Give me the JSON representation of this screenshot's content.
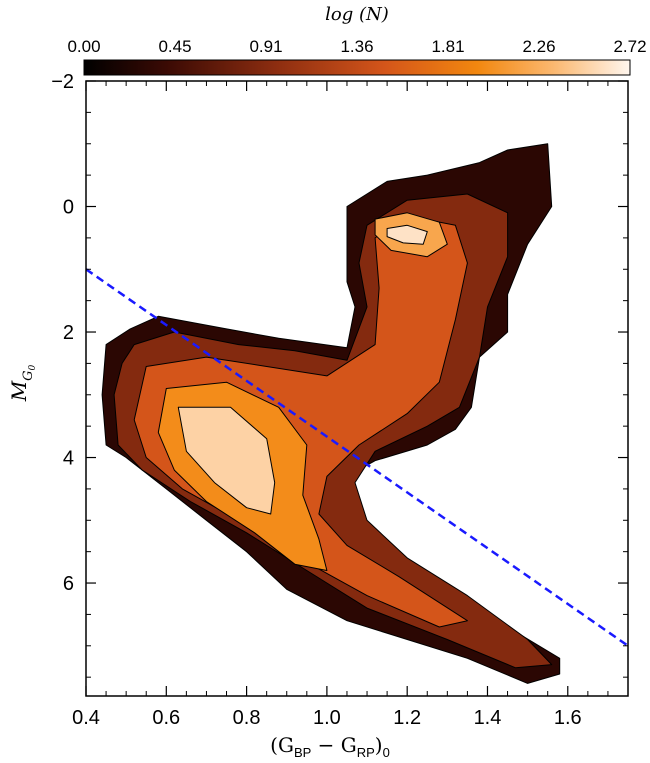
{
  "chart_data": {
    "type": "heatmap",
    "subtype": "density contour (Hess diagram)",
    "colorbar": {
      "title": "log (N)",
      "ticks": [
        "0.00",
        "0.45",
        "0.91",
        "1.36",
        "1.81",
        "2.26",
        "2.72"
      ],
      "range": [
        0.0,
        2.72
      ],
      "colormap": "black-red-orange-white (hot)"
    },
    "xlabel": {
      "main": "(G",
      "sub1": "BP",
      "minus": " − G",
      "sub2": "RP",
      "close": ")",
      "sub3": "0"
    },
    "ylabel": {
      "main": "M",
      "sub": "G",
      "subsub": "0"
    },
    "xlim": [
      0.4,
      1.75
    ],
    "ylim": [
      7.8,
      -2.0
    ],
    "x_ticks": [
      "0.4",
      "0.6",
      "0.8",
      "1.0",
      "1.2",
      "1.4",
      "1.6"
    ],
    "x_tick_values": [
      0.4,
      0.6,
      0.8,
      1.0,
      1.2,
      1.4,
      1.6
    ],
    "y_ticks": [
      "−2",
      "0",
      "2",
      "4",
      "6"
    ],
    "y_tick_values": [
      -2,
      0,
      2,
      4,
      6
    ],
    "grid": false,
    "density_levels": [
      {
        "level": 0.3,
        "polygon": [
          [
            0.51,
            1.95
          ],
          [
            0.58,
            1.75
          ],
          [
            0.75,
            1.95
          ],
          [
            0.88,
            2.1
          ],
          [
            1.05,
            2.25
          ],
          [
            1.07,
            1.6
          ],
          [
            1.05,
            1.2
          ],
          [
            1.05,
            0.5
          ],
          [
            1.05,
            0.0
          ],
          [
            1.15,
            -0.4
          ],
          [
            1.25,
            -0.5
          ],
          [
            1.38,
            -0.7
          ],
          [
            1.45,
            -0.9
          ],
          [
            1.55,
            -1.0
          ],
          [
            1.56,
            0.0
          ],
          [
            1.5,
            0.6
          ],
          [
            1.45,
            1.4
          ],
          [
            1.45,
            2.0
          ],
          [
            1.38,
            2.4
          ],
          [
            1.36,
            3.2
          ],
          [
            1.32,
            3.55
          ],
          [
            1.25,
            3.8
          ],
          [
            1.12,
            4.05
          ],
          [
            1.05,
            4.3
          ],
          [
            1.04,
            4.8
          ],
          [
            1.1,
            5.3
          ],
          [
            1.2,
            5.8
          ],
          [
            1.3,
            6.2
          ],
          [
            1.45,
            6.7
          ],
          [
            1.58,
            7.2
          ],
          [
            1.58,
            7.45
          ],
          [
            1.5,
            7.6
          ],
          [
            1.35,
            7.2
          ],
          [
            1.2,
            6.9
          ],
          [
            1.05,
            6.6
          ],
          [
            0.9,
            6.1
          ],
          [
            0.8,
            5.5
          ],
          [
            0.7,
            5.0
          ],
          [
            0.6,
            4.5
          ],
          [
            0.5,
            4.0
          ],
          [
            0.45,
            3.8
          ],
          [
            0.44,
            3.0
          ],
          [
            0.45,
            2.2
          ]
        ]
      },
      {
        "level": 0.9,
        "polygon": [
          [
            0.52,
            2.2
          ],
          [
            0.62,
            2.0
          ],
          [
            0.78,
            2.2
          ],
          [
            0.92,
            2.3
          ],
          [
            1.05,
            2.45
          ],
          [
            1.1,
            1.6
          ],
          [
            1.08,
            0.9
          ],
          [
            1.1,
            0.3
          ],
          [
            1.2,
            -0.1
          ],
          [
            1.35,
            -0.2
          ],
          [
            1.45,
            0.1
          ],
          [
            1.45,
            0.8
          ],
          [
            1.4,
            1.6
          ],
          [
            1.38,
            2.4
          ],
          [
            1.33,
            3.2
          ],
          [
            1.25,
            3.5
          ],
          [
            1.12,
            3.9
          ],
          [
            1.07,
            4.4
          ],
          [
            1.1,
            5.0
          ],
          [
            1.2,
            5.6
          ],
          [
            1.35,
            6.2
          ],
          [
            1.5,
            6.9
          ],
          [
            1.56,
            7.3
          ],
          [
            1.47,
            7.35
          ],
          [
            1.3,
            6.9
          ],
          [
            1.1,
            6.4
          ],
          [
            0.95,
            5.8
          ],
          [
            0.8,
            5.2
          ],
          [
            0.66,
            4.7
          ],
          [
            0.54,
            4.2
          ],
          [
            0.48,
            3.8
          ],
          [
            0.47,
            3.0
          ],
          [
            0.49,
            2.5
          ]
        ]
      },
      {
        "level": 1.5,
        "polygon": [
          [
            0.55,
            2.55
          ],
          [
            0.7,
            2.4
          ],
          [
            0.85,
            2.55
          ],
          [
            1.0,
            2.7
          ],
          [
            1.12,
            2.2
          ],
          [
            1.13,
            1.3
          ],
          [
            1.12,
            0.5
          ],
          [
            1.2,
            0.15
          ],
          [
            1.32,
            0.3
          ],
          [
            1.35,
            0.9
          ],
          [
            1.32,
            1.8
          ],
          [
            1.28,
            2.8
          ],
          [
            1.2,
            3.3
          ],
          [
            1.08,
            3.8
          ],
          [
            1.0,
            4.3
          ],
          [
            0.98,
            4.9
          ],
          [
            1.05,
            5.4
          ],
          [
            1.18,
            5.9
          ],
          [
            1.35,
            6.6
          ],
          [
            1.28,
            6.7
          ],
          [
            1.1,
            6.2
          ],
          [
            0.93,
            5.6
          ],
          [
            0.78,
            5.0
          ],
          [
            0.64,
            4.5
          ],
          [
            0.55,
            4.0
          ],
          [
            0.52,
            3.4
          ]
        ]
      },
      {
        "level": 2.0,
        "polygon": [
          [
            0.6,
            2.9
          ],
          [
            0.75,
            2.8
          ],
          [
            0.88,
            3.2
          ],
          [
            0.95,
            3.8
          ],
          [
            0.94,
            4.6
          ],
          [
            0.98,
            5.3
          ],
          [
            1.0,
            5.8
          ],
          [
            0.92,
            5.7
          ],
          [
            0.82,
            5.2
          ],
          [
            0.7,
            4.7
          ],
          [
            0.62,
            4.2
          ],
          [
            0.58,
            3.6
          ]
        ]
      },
      {
        "level": 2.5,
        "polygon": [
          [
            0.63,
            3.2
          ],
          [
            0.76,
            3.2
          ],
          [
            0.85,
            3.7
          ],
          [
            0.87,
            4.4
          ],
          [
            0.86,
            4.9
          ],
          [
            0.8,
            4.8
          ],
          [
            0.72,
            4.4
          ],
          [
            0.65,
            3.9
          ]
        ]
      },
      {
        "level": 2.2,
        "polygon": [
          [
            1.12,
            0.2
          ],
          [
            1.2,
            0.1
          ],
          [
            1.28,
            0.25
          ],
          [
            1.3,
            0.6
          ],
          [
            1.25,
            0.8
          ],
          [
            1.16,
            0.7
          ],
          [
            1.12,
            0.45
          ]
        ]
      },
      {
        "level": 2.6,
        "polygon": [
          [
            1.15,
            0.35
          ],
          [
            1.2,
            0.3
          ],
          [
            1.25,
            0.4
          ],
          [
            1.24,
            0.6
          ],
          [
            1.19,
            0.58
          ],
          [
            1.15,
            0.48
          ]
        ]
      }
    ],
    "reference_line": {
      "style": "dashed",
      "color": "#1a1aff",
      "points": [
        [
          0.4,
          1.0
        ],
        [
          1.75,
          7.0
        ]
      ]
    }
  }
}
